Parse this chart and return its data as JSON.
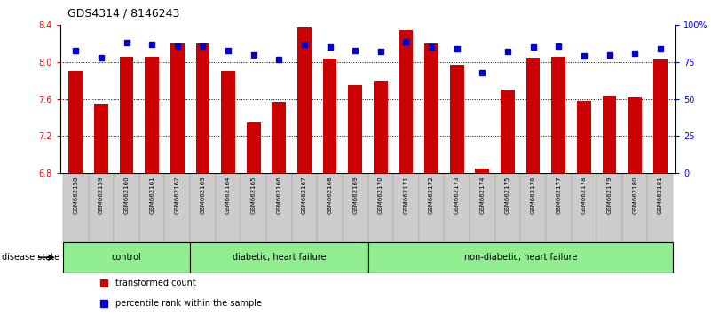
{
  "title": "GDS4314 / 8146243",
  "samples": [
    "GSM662158",
    "GSM662159",
    "GSM662160",
    "GSM662161",
    "GSM662162",
    "GSM662163",
    "GSM662164",
    "GSM662165",
    "GSM662166",
    "GSM662167",
    "GSM662168",
    "GSM662169",
    "GSM662170",
    "GSM662171",
    "GSM662172",
    "GSM662173",
    "GSM662174",
    "GSM662175",
    "GSM662176",
    "GSM662177",
    "GSM662178",
    "GSM662179",
    "GSM662180",
    "GSM662181"
  ],
  "bar_values": [
    7.9,
    7.55,
    8.06,
    8.06,
    8.2,
    8.2,
    7.9,
    7.35,
    7.57,
    8.37,
    8.04,
    7.75,
    7.8,
    8.35,
    8.2,
    7.97,
    6.85,
    7.7,
    8.05,
    8.06,
    7.58,
    7.63,
    7.62,
    8.03
  ],
  "percentile_values": [
    83,
    78,
    88,
    87,
    86,
    86,
    83,
    80,
    77,
    87,
    85,
    83,
    82,
    89,
    85,
    84,
    68,
    82,
    85,
    86,
    79,
    80,
    81,
    84
  ],
  "bar_color": "#cc0000",
  "percentile_color": "#0000cc",
  "ylim_left": [
    6.8,
    8.4
  ],
  "ylim_right": [
    0,
    100
  ],
  "yticks_left": [
    6.8,
    7.2,
    7.6,
    8.0,
    8.4
  ],
  "yticks_right": [
    0,
    25,
    50,
    75,
    100
  ],
  "ytick_right_labels": [
    "0",
    "25",
    "50",
    "75",
    "100%"
  ],
  "hlines": [
    8.0,
    7.6,
    7.2
  ],
  "groups_def": [
    {
      "label": "control",
      "start": 0,
      "end": 4,
      "color": "#90EE90"
    },
    {
      "label": "diabetic, heart failure",
      "start": 5,
      "end": 11,
      "color": "#90EE90"
    },
    {
      "label": "non-diabetic, heart failure",
      "start": 12,
      "end": 23,
      "color": "#90EE90"
    }
  ],
  "disease_state_label": "disease state",
  "legend_bar_label": "transformed count",
  "legend_pct_label": "percentile rank within the sample",
  "sample_bg": "#cccccc",
  "plot_bg": "#ffffff",
  "title_fontsize": 9,
  "tick_fontsize": 7,
  "sample_fontsize": 5,
  "group_fontsize": 7,
  "legend_fontsize": 7
}
